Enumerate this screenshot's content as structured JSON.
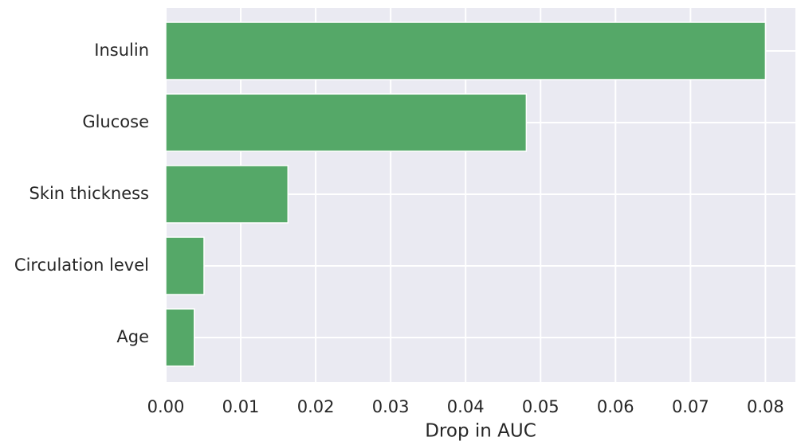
{
  "chart_data": {
    "type": "barh",
    "categories": [
      "Insulin",
      "Glucose",
      "Skin thickness",
      "Circulation level",
      "Age"
    ],
    "values": [
      0.08,
      0.0481,
      0.0163,
      0.0051,
      0.0038
    ],
    "color": "#55a868",
    "xlabel": "Drop in AUC",
    "xlim": [
      0,
      0.084
    ],
    "xticks": [
      {
        "value": 0,
        "label": "0.00"
      },
      {
        "value": 0.01,
        "label": "0.01"
      },
      {
        "value": 0.02,
        "label": "0.02"
      },
      {
        "value": 0.03,
        "label": "0.03"
      },
      {
        "value": 0.04,
        "label": "0.04"
      },
      {
        "value": 0.05,
        "label": "0.05"
      },
      {
        "value": 0.06,
        "label": "0.06"
      },
      {
        "value": 0.07,
        "label": "0.07"
      },
      {
        "value": 0.08,
        "label": "0.08"
      }
    ],
    "grid": true
  }
}
